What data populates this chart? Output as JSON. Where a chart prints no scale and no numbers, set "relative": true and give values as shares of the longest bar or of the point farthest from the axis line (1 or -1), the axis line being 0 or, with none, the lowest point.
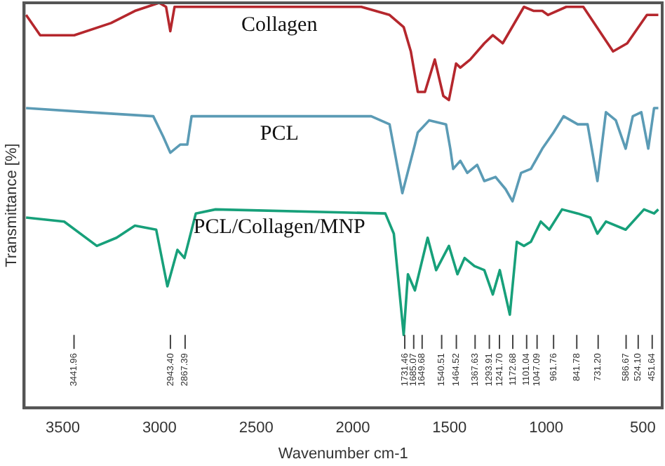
{
  "chart_data": {
    "type": "line",
    "relative": true,
    "xlabel": "Wavenumber cm-1",
    "ylabel": "Transmittance [%]",
    "xlim": [
      3700,
      400
    ],
    "xticks": [
      3500,
      3000,
      2500,
      2000,
      1500,
      1000,
      500
    ],
    "ylim": [
      0,
      1
    ],
    "grid": false,
    "legend": false,
    "marker": "none",
    "series": [
      {
        "name": "Collagen",
        "color": "#b5272d",
        "x": [
          3690,
          3617,
          3441,
          3251,
          3127,
          3002,
          2966,
          2944,
          2922,
          2834,
          1956,
          1810,
          1737,
          1700,
          1664,
          1627,
          1576,
          1532,
          1503,
          1466,
          1444,
          1393,
          1320,
          1276,
          1225,
          1115,
          1064,
          1020,
          991,
          896,
          808,
          654,
          581,
          479,
          420
        ],
        "values": [
          0.97,
          0.92,
          0.92,
          0.95,
          0.98,
          1.0,
          0.99,
          0.93,
          0.99,
          0.99,
          0.99,
          0.97,
          0.94,
          0.88,
          0.78,
          0.78,
          0.86,
          0.77,
          0.76,
          0.85,
          0.84,
          0.86,
          0.9,
          0.92,
          0.9,
          0.99,
          0.98,
          0.98,
          0.97,
          0.99,
          0.99,
          0.88,
          0.9,
          0.97,
          0.97
        ]
      },
      {
        "name": "PCL",
        "color": "#5b9bb5",
        "x": [
          3690,
          3368,
          3032,
          2981,
          2944,
          2893,
          2856,
          2834,
          1905,
          1810,
          1744,
          1679,
          1664,
          1605,
          1518,
          1496,
          1481,
          1444,
          1408,
          1357,
          1320,
          1262,
          1210,
          1174,
          1130,
          1079,
          1020,
          962,
          910,
          837,
          786,
          735,
          691,
          640,
          589,
          552,
          508,
          472,
          442,
          420
        ],
        "values": [
          0.74,
          0.73,
          0.72,
          0.67,
          0.63,
          0.65,
          0.65,
          0.72,
          0.72,
          0.7,
          0.53,
          0.65,
          0.68,
          0.71,
          0.7,
          0.64,
          0.59,
          0.61,
          0.58,
          0.6,
          0.56,
          0.57,
          0.54,
          0.51,
          0.58,
          0.59,
          0.64,
          0.68,
          0.72,
          0.7,
          0.7,
          0.56,
          0.73,
          0.71,
          0.64,
          0.72,
          0.73,
          0.64,
          0.74,
          0.74
        ]
      },
      {
        "name": "PCL/Collagen/MNP",
        "color": "#17a07a",
        "x": [
          3690,
          3493,
          3324,
          3222,
          3127,
          3017,
          2959,
          2907,
          2871,
          2812,
          2710,
          1832,
          1788,
          1737,
          1715,
          1679,
          1613,
          1569,
          1503,
          1459,
          1422,
          1371,
          1320,
          1276,
          1240,
          1188,
          1152,
          1115,
          1079,
          1028,
          984,
          918,
          837,
          772,
          735,
          691,
          589,
          494,
          442,
          420
        ],
        "values": [
          0.47,
          0.46,
          0.4,
          0.42,
          0.45,
          0.44,
          0.3,
          0.39,
          0.37,
          0.48,
          0.49,
          0.48,
          0.43,
          0.18,
          0.33,
          0.29,
          0.42,
          0.34,
          0.4,
          0.33,
          0.37,
          0.35,
          0.34,
          0.28,
          0.34,
          0.23,
          0.41,
          0.4,
          0.41,
          0.46,
          0.44,
          0.49,
          0.48,
          0.47,
          0.43,
          0.46,
          0.44,
          0.49,
          0.48,
          0.49
        ]
      }
    ],
    "annotations": [
      {
        "text": "3441.96",
        "x": 3441.96
      },
      {
        "text": "2943.40",
        "x": 2943.4
      },
      {
        "text": "2867.39",
        "x": 2867.39
      },
      {
        "text": "1731.46",
        "x": 1731.46
      },
      {
        "text": "1685.07",
        "x": 1685.07
      },
      {
        "text": "1649.68",
        "x": 1649.68
      },
      {
        "text": "1540.51",
        "x": 1540.51
      },
      {
        "text": "1464.52",
        "x": 1464.52
      },
      {
        "text": "1367.63",
        "x": 1367.63
      },
      {
        "text": "1293.91",
        "x": 1293.91
      },
      {
        "text": "1241.70",
        "x": 1241.7
      },
      {
        "text": "1172.68",
        "x": 1172.68
      },
      {
        "text": "1101.04",
        "x": 1101.04
      },
      {
        "text": "1047.09",
        "x": 1047.09
      },
      {
        "text": "961.76",
        "x": 961.76
      },
      {
        "text": "841.78",
        "x": 841.78
      },
      {
        "text": "731.20",
        "x": 731.2
      },
      {
        "text": "586.67",
        "x": 586.67
      },
      {
        "text": "524.10",
        "x": 524.1
      },
      {
        "text": "451.64",
        "x": 451.64
      }
    ]
  }
}
